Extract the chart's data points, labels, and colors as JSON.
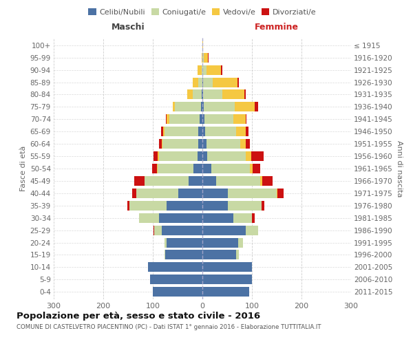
{
  "age_groups": [
    "0-4",
    "5-9",
    "10-14",
    "15-19",
    "20-24",
    "25-29",
    "30-34",
    "35-39",
    "40-44",
    "45-49",
    "50-54",
    "55-59",
    "60-64",
    "65-69",
    "70-74",
    "75-79",
    "80-84",
    "85-89",
    "90-94",
    "95-99",
    "100+"
  ],
  "birth_years": [
    "2011-2015",
    "2006-2010",
    "2001-2005",
    "1996-2000",
    "1991-1995",
    "1986-1990",
    "1981-1985",
    "1976-1980",
    "1971-1975",
    "1966-1970",
    "1961-1965",
    "1956-1960",
    "1951-1955",
    "1946-1950",
    "1941-1945",
    "1936-1940",
    "1931-1935",
    "1926-1930",
    "1921-1925",
    "1916-1920",
    "≤ 1915"
  ],
  "colors": {
    "celibi": "#4C72A4",
    "coniugati": "#C8D9A4",
    "vedovi": "#F5C842",
    "divorziati": "#CC1111"
  },
  "maschi": {
    "celibi": [
      100,
      105,
      110,
      75,
      72,
      82,
      88,
      72,
      48,
      28,
      18,
      10,
      8,
      8,
      5,
      3,
      2,
      0,
      0,
      0,
      0
    ],
    "coniugati": [
      0,
      0,
      0,
      2,
      5,
      15,
      40,
      75,
      85,
      88,
      72,
      78,
      72,
      68,
      62,
      52,
      18,
      8,
      2,
      0,
      0
    ],
    "vedovi": [
      0,
      0,
      0,
      0,
      0,
      0,
      0,
      0,
      1,
      1,
      1,
      2,
      2,
      3,
      5,
      5,
      10,
      12,
      8,
      2,
      0
    ],
    "divorziati": [
      0,
      0,
      0,
      0,
      0,
      2,
      0,
      5,
      8,
      20,
      10,
      8,
      5,
      5,
      2,
      0,
      0,
      0,
      0,
      0,
      0
    ]
  },
  "femmine": {
    "nubili": [
      95,
      100,
      100,
      68,
      72,
      88,
      62,
      52,
      52,
      28,
      18,
      10,
      8,
      6,
      4,
      3,
      2,
      1,
      0,
      0,
      0
    ],
    "coniugate": [
      0,
      0,
      0,
      5,
      10,
      25,
      38,
      68,
      98,
      88,
      78,
      78,
      68,
      62,
      58,
      62,
      38,
      20,
      8,
      3,
      0
    ],
    "vedove": [
      0,
      0,
      0,
      0,
      0,
      0,
      0,
      0,
      2,
      5,
      5,
      10,
      12,
      20,
      25,
      40,
      45,
      50,
      30,
      8,
      1
    ],
    "divorziate": [
      0,
      0,
      0,
      0,
      0,
      0,
      5,
      5,
      12,
      20,
      15,
      25,
      8,
      5,
      2,
      8,
      2,
      2,
      2,
      2,
      0
    ]
  },
  "title": "Popolazione per età, sesso e stato civile - 2016",
  "subtitle": "COMUNE DI CASTELVETRO PIACENTINO (PC) - Dati ISTAT 1° gennaio 2016 - Elaborazione TUTTITALIA.IT",
  "xlabel_left": "Maschi",
  "xlabel_right": "Femmine",
  "ylabel_left": "Fasce di età",
  "ylabel_right": "Anni di nascita",
  "xlim": 300,
  "bg_color": "#FFFFFF",
  "grid_color": "#C8C8C8",
  "legend_labels": [
    "Celibi/Nubili",
    "Coniugati/e",
    "Vedovi/e",
    "Divorziati/e"
  ]
}
